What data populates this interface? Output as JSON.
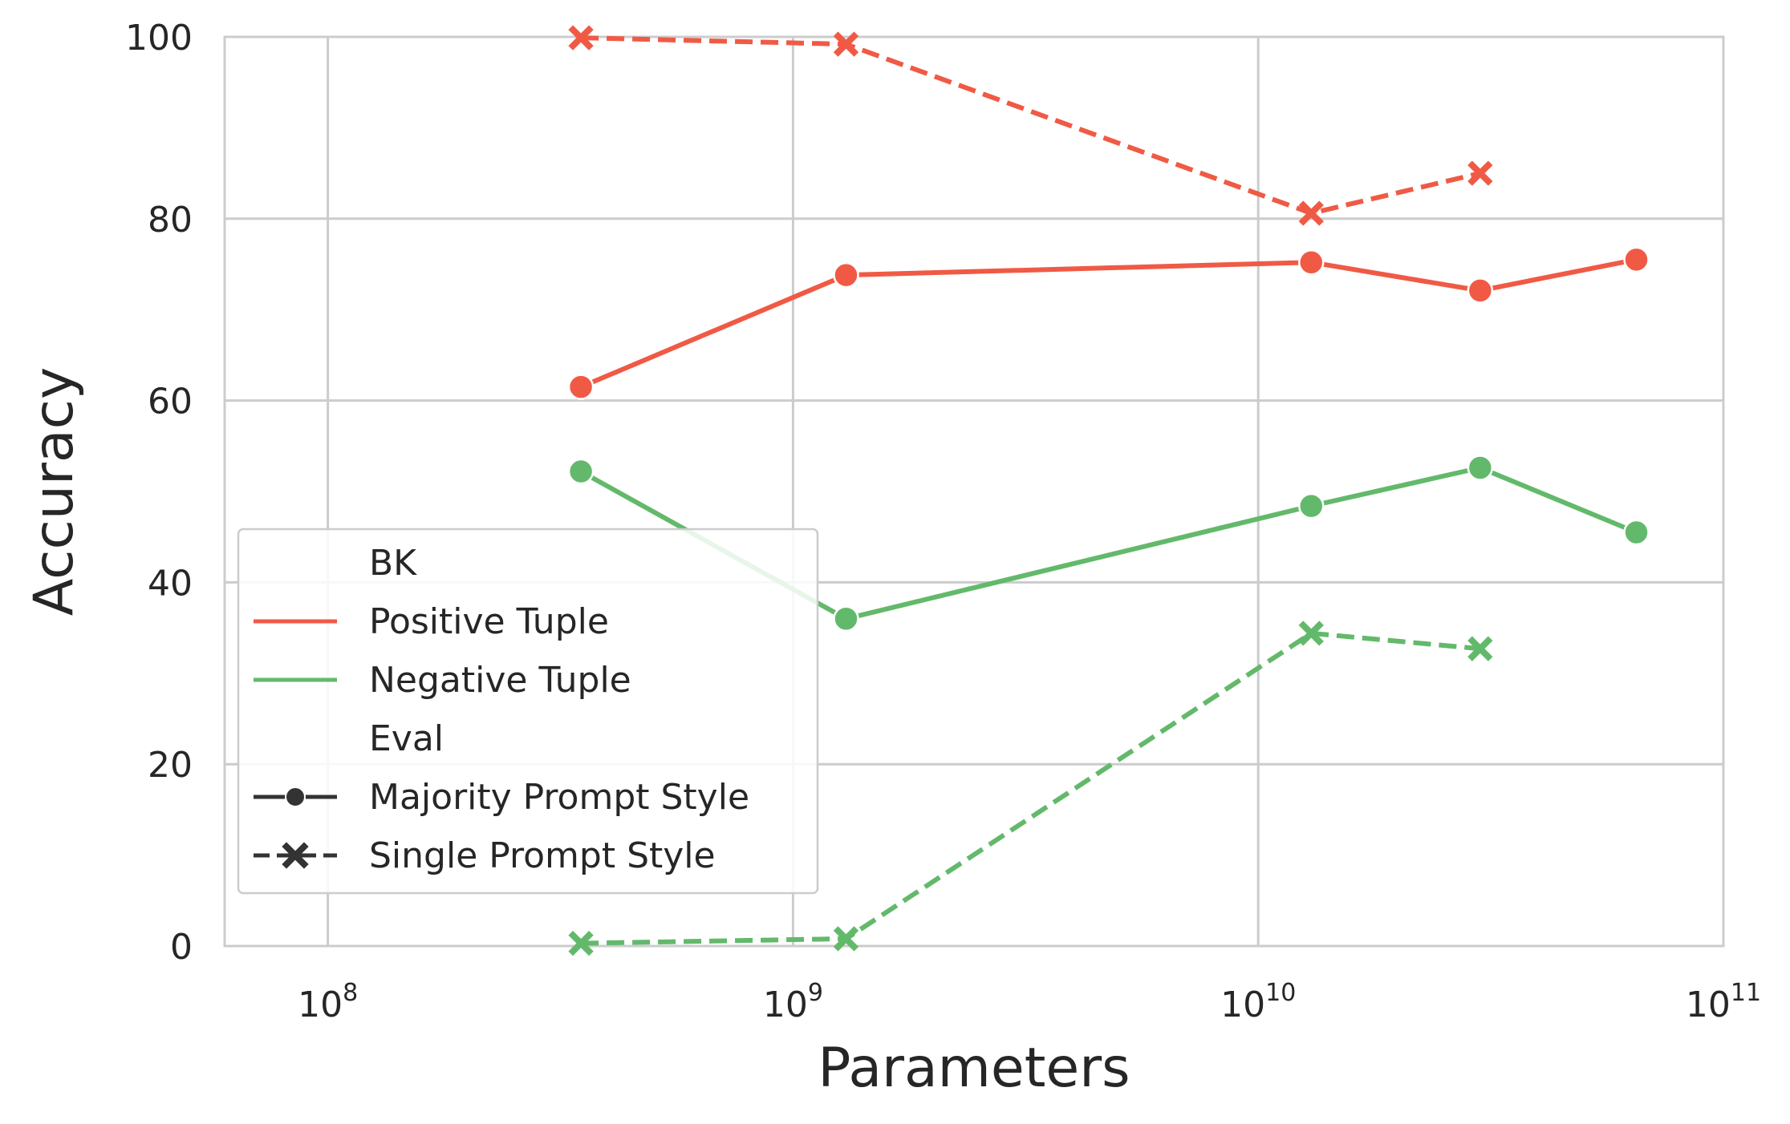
{
  "chart_data": {
    "type": "line",
    "xlabel": "Parameters",
    "ylabel": "Accuracy",
    "xscale": "log",
    "xlim": [
      60000000,
      100000000000
    ],
    "ylim": [
      0,
      100
    ],
    "grid": true,
    "x_ticks": [
      {
        "value": 100000000,
        "base": "10",
        "exp": "8"
      },
      {
        "value": 1000000000,
        "base": "10",
        "exp": "9"
      },
      {
        "value": 10000000000,
        "base": "10",
        "exp": "10"
      },
      {
        "value": 100000000000,
        "base": "10",
        "exp": "11"
      }
    ],
    "y_ticks": [
      "0",
      "20",
      "40",
      "60",
      "80",
      "100"
    ],
    "legend": {
      "placement": "lower-left",
      "hue_title": "BK",
      "hue_entries": [
        {
          "label": "Positive Tuple",
          "color": "#f05a45"
        },
        {
          "label": "Negative Tuple",
          "color": "#63b96b"
        }
      ],
      "style_title": "Eval",
      "style_entries": [
        {
          "label": "Majority Prompt Style",
          "marker": "circle",
          "dash": "solid"
        },
        {
          "label": "Single Prompt Style",
          "marker": "x",
          "dash": "dashed"
        }
      ]
    },
    "series": [
      {
        "bk": "Positive Tuple",
        "eval": "Majority Prompt Style",
        "color": "#f05a45",
        "marker": "circle",
        "dash": "solid",
        "x": [
          350000000,
          1300000000,
          13000000000,
          30000000000,
          65000000000
        ],
        "y": [
          61.5,
          73.8,
          75.2,
          72.1,
          75.5
        ]
      },
      {
        "bk": "Positive Tuple",
        "eval": "Single Prompt Style",
        "color": "#f05a45",
        "marker": "x",
        "dash": "dashed",
        "x": [
          350000000,
          1300000000,
          13000000000,
          30000000000
        ],
        "y": [
          99.9,
          99.2,
          80.6,
          85.0
        ]
      },
      {
        "bk": "Negative Tuple",
        "eval": "Majority Prompt Style",
        "color": "#63b96b",
        "marker": "circle",
        "dash": "solid",
        "x": [
          350000000,
          1300000000,
          13000000000,
          30000000000,
          65000000000
        ],
        "y": [
          52.2,
          36.0,
          48.4,
          52.6,
          45.5
        ]
      },
      {
        "bk": "Negative Tuple",
        "eval": "Single Prompt Style",
        "color": "#63b96b",
        "marker": "x",
        "dash": "dashed",
        "x": [
          350000000,
          1300000000,
          13000000000,
          30000000000
        ],
        "y": [
          0.3,
          0.8,
          34.4,
          32.7
        ]
      }
    ]
  }
}
